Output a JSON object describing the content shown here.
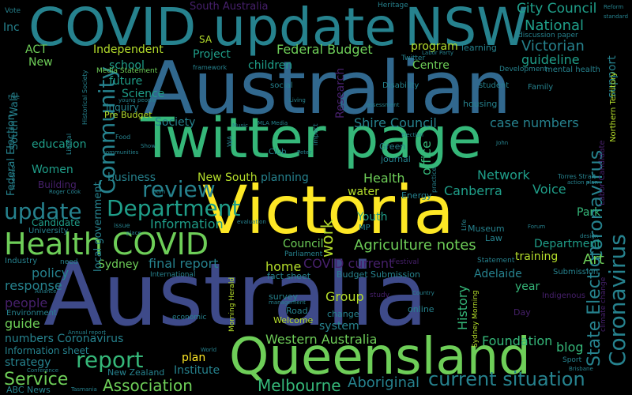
{
  "palette": {
    "purple": "#46206b",
    "indigo": "#3e4a89",
    "blue": "#31688e",
    "teal": "#26828e",
    "green": "#1f9e89",
    "mint": "#35b779",
    "lime": "#6ece58",
    "yellowgreen": "#b5de2b",
    "yellow": "#fde725"
  },
  "words": [
    {
      "text": "Australia",
      "c": "indigo"
    },
    {
      "text": "Australian",
      "c": "blue"
    },
    {
      "text": "Twitter page",
      "c": "mint"
    },
    {
      "text": "Victoria",
      "c": "yellow"
    },
    {
      "text": "COVID update",
      "c": "teal"
    },
    {
      "text": "NSW",
      "c": "teal"
    },
    {
      "text": "Queensland",
      "c": "lime"
    },
    {
      "text": "Health COVID",
      "c": "lime"
    },
    {
      "text": "Department",
      "c": "green"
    },
    {
      "text": "update",
      "c": "teal"
    },
    {
      "text": "Community",
      "c": "teal"
    },
    {
      "text": "review",
      "c": "teal"
    },
    {
      "text": "Coronavirus",
      "c": "teal"
    },
    {
      "text": "report",
      "c": "mint"
    },
    {
      "text": "Service",
      "c": "lime"
    },
    {
      "text": "Association",
      "c": "lime"
    },
    {
      "text": "Melbourne",
      "c": "mint"
    },
    {
      "text": "Aboriginal",
      "c": "teal"
    },
    {
      "text": "current situation",
      "c": "teal"
    },
    {
      "text": "Western Australia",
      "c": "lime"
    },
    {
      "text": "State Election",
      "c": "teal"
    },
    {
      "text": "coronavirus",
      "c": "teal"
    },
    {
      "text": "City Council",
      "c": "green"
    },
    {
      "text": "National",
      "c": "green"
    },
    {
      "text": "Victorian",
      "c": "teal"
    },
    {
      "text": "guideline",
      "c": "green"
    },
    {
      "text": "Federal Budget",
      "c": "lime"
    },
    {
      "text": "Independent",
      "c": "yellowgreen"
    },
    {
      "text": "Project",
      "c": "green"
    },
    {
      "text": "children",
      "c": "green"
    },
    {
      "text": "program",
      "c": "yellowgreen"
    },
    {
      "text": "Centre",
      "c": "lime"
    },
    {
      "text": "learning",
      "c": "teal"
    },
    {
      "text": "case numbers",
      "c": "teal"
    },
    {
      "text": "Shire Council",
      "c": "teal"
    },
    {
      "text": "Health",
      "c": "lime"
    },
    {
      "text": "Network",
      "c": "green"
    },
    {
      "text": "Canberra",
      "c": "green"
    },
    {
      "text": "Voice",
      "c": "green"
    },
    {
      "text": "Agriculture notes",
      "c": "lime"
    },
    {
      "text": "Council",
      "c": "lime"
    },
    {
      "text": "work",
      "c": "yellowgreen"
    },
    {
      "text": "COVID current",
      "c": "purple"
    },
    {
      "text": "Information",
      "c": "green"
    },
    {
      "text": "New South",
      "c": "yellowgreen"
    },
    {
      "text": "planning",
      "c": "teal"
    },
    {
      "text": "business",
      "c": "teal"
    },
    {
      "text": "Society",
      "c": "teal"
    },
    {
      "text": "Science",
      "c": "green"
    },
    {
      "text": "future",
      "c": "green"
    },
    {
      "text": "school",
      "c": "green"
    },
    {
      "text": "Inquiry",
      "c": "teal"
    },
    {
      "text": "Pre Budget",
      "c": "yellowgreen"
    },
    {
      "text": "Media Statement",
      "c": "lime"
    },
    {
      "text": "ACT",
      "c": "lime"
    },
    {
      "text": "New",
      "c": "lime"
    },
    {
      "text": "Inc",
      "c": "teal"
    },
    {
      "text": "SA",
      "c": "yellowgreen"
    },
    {
      "text": "South Australia",
      "c": "purple"
    },
    {
      "text": "Heritage",
      "c": "teal"
    },
    {
      "text": "Vote",
      "c": "teal"
    },
    {
      "text": "Research",
      "c": "purple"
    },
    {
      "text": "office",
      "c": "mint"
    },
    {
      "text": "Green",
      "c": "teal"
    },
    {
      "text": "journal",
      "c": "teal"
    },
    {
      "text": "Energy",
      "c": "teal"
    },
    {
      "text": "water",
      "c": "yellowgreen"
    },
    {
      "text": "Youth",
      "c": "green"
    },
    {
      "text": "MP",
      "c": "teal"
    },
    {
      "text": "Museum",
      "c": "teal"
    },
    {
      "text": "Law",
      "c": "teal"
    },
    {
      "text": "Park",
      "c": "mint"
    },
    {
      "text": "Department",
      "c": "green"
    },
    {
      "text": "training",
      "c": "yellowgreen"
    },
    {
      "text": "Art",
      "c": "lime"
    },
    {
      "text": "final report",
      "c": "teal"
    },
    {
      "text": "home",
      "c": "yellowgreen"
    },
    {
      "text": "fact sheet",
      "c": "teal"
    },
    {
      "text": "Group",
      "c": "yellowgreen"
    },
    {
      "text": "Budget Submission",
      "c": "teal"
    },
    {
      "text": "Adelaide",
      "c": "teal"
    },
    {
      "text": "year",
      "c": "mint"
    },
    {
      "text": "History",
      "c": "mint"
    },
    {
      "text": "Foundation",
      "c": "mint"
    },
    {
      "text": "blog",
      "c": "mint"
    },
    {
      "text": "Welcome",
      "c": "yellowgreen"
    },
    {
      "text": "Road",
      "c": "teal"
    },
    {
      "text": "change",
      "c": "teal"
    },
    {
      "text": "system",
      "c": "teal"
    },
    {
      "text": "survey",
      "c": "teal"
    },
    {
      "text": "online",
      "c": "teal"
    },
    {
      "text": "Day",
      "c": "purple"
    },
    {
      "text": "policy",
      "c": "teal"
    },
    {
      "text": "response",
      "c": "teal"
    },
    {
      "text": "people",
      "c": "purple"
    },
    {
      "text": "guide",
      "c": "lime"
    },
    {
      "text": "numbers Coronavirus",
      "c": "teal"
    },
    {
      "text": "Information sheet",
      "c": "teal"
    },
    {
      "text": "strategy",
      "c": "teal"
    },
    {
      "text": "plan",
      "c": "yellow"
    },
    {
      "text": "Institute",
      "c": "teal"
    },
    {
      "text": "New Zealand",
      "c": "teal"
    },
    {
      "text": "ABC News",
      "c": "teal"
    },
    {
      "text": "Sydney",
      "c": "lime"
    },
    {
      "text": "Candidate",
      "c": "green"
    },
    {
      "text": "University",
      "c": "teal"
    },
    {
      "text": "Industry",
      "c": "teal"
    },
    {
      "text": "Environment",
      "c": "teal"
    },
    {
      "text": "education",
      "c": "green"
    },
    {
      "text": "Women",
      "c": "green"
    },
    {
      "text": "Building",
      "c": "purple"
    },
    {
      "text": "Federal Election",
      "c": "teal"
    },
    {
      "text": "South Wale",
      "c": "teal"
    },
    {
      "text": "local government",
      "c": "teal"
    },
    {
      "text": "support",
      "c": "teal"
    },
    {
      "text": "mental health",
      "c": "teal"
    },
    {
      "text": "Development",
      "c": "teal"
    },
    {
      "text": "Family",
      "c": "teal"
    },
    {
      "text": "student",
      "c": "teal"
    },
    {
      "text": "housing",
      "c": "teal"
    },
    {
      "text": "Disability",
      "c": "teal"
    },
    {
      "text": "social",
      "c": "teal"
    },
    {
      "text": "Twitter",
      "c": "teal"
    },
    {
      "text": "discussion paper",
      "c": "teal"
    },
    {
      "text": "Northern Territory",
      "c": "yellowgreen"
    },
    {
      "text": "Labor Candidate",
      "c": "purple"
    },
    {
      "text": "Torres Strait",
      "c": "teal"
    },
    {
      "text": "Submission",
      "c": "teal"
    },
    {
      "text": "Indigenous",
      "c": "purple"
    },
    {
      "text": "Sport",
      "c": "teal"
    },
    {
      "text": "Statement",
      "c": "teal"
    },
    {
      "text": "Festival",
      "c": "purple"
    },
    {
      "text": "Sydney Morning",
      "c": "yellowgreen"
    },
    {
      "text": "Morning Herald",
      "c": "yellowgreen"
    },
    {
      "text": "economic",
      "c": "teal"
    },
    {
      "text": "International",
      "c": "teal"
    },
    {
      "text": "Parliament",
      "c": "teal"
    },
    {
      "text": "study",
      "c": "purple"
    },
    {
      "text": "Historical Society",
      "c": "teal"
    },
    {
      "text": "Food",
      "c": "teal"
    },
    {
      "text": "Liberal",
      "c": "teal"
    },
    {
      "text": "Club",
      "c": "teal"
    },
    {
      "text": "impact",
      "c": "teal"
    },
    {
      "text": "practice",
      "c": "teal"
    },
    {
      "text": "issue",
      "c": "teal"
    },
    {
      "text": "framework",
      "c": "teal"
    },
    {
      "text": "need",
      "c": "teal"
    },
    {
      "text": "climate change",
      "c": "purple"
    },
    {
      "text": "Life",
      "c": "teal"
    },
    {
      "text": "Country",
      "c": "teal"
    },
    {
      "text": "Alliance",
      "c": "teal"
    },
    {
      "text": "Annual report",
      "c": "teal"
    },
    {
      "text": "World",
      "c": "teal"
    },
    {
      "text": "Conference",
      "c": "teal"
    },
    {
      "text": "WA",
      "c": "teal"
    },
    {
      "text": "Tasmania",
      "c": "teal"
    },
    {
      "text": "Brisbane",
      "c": "teal"
    },
    {
      "text": "Labor Party",
      "c": "teal"
    },
    {
      "text": "standard",
      "c": "teal"
    },
    {
      "text": "Reform",
      "c": "teal"
    },
    {
      "text": "assessment",
      "c": "teal"
    },
    {
      "text": "Election",
      "c": "teal"
    },
    {
      "text": "Living",
      "c": "teal"
    },
    {
      "text": "Peter",
      "c": "teal"
    },
    {
      "text": "MLA Media",
      "c": "teal"
    },
    {
      "text": "Music",
      "c": "teal"
    },
    {
      "text": "Show",
      "c": "teal"
    },
    {
      "text": "John",
      "c": "teal"
    },
    {
      "text": "Forum",
      "c": "teal"
    },
    {
      "text": "design",
      "c": "teal"
    },
    {
      "text": "action plan",
      "c": "teal"
    },
    {
      "text": "Roger Cook",
      "c": "teal"
    },
    {
      "text": "Kim",
      "c": "teal"
    },
    {
      "text": "young people",
      "c": "teal"
    },
    {
      "text": "resource",
      "c": "teal"
    },
    {
      "text": "communities",
      "c": "teal"
    },
    {
      "text": "management",
      "c": "teal"
    },
    {
      "text": "evaluation",
      "c": "teal"
    },
    {
      "text": "Free",
      "c": "teal"
    },
    {
      "text": "place",
      "c": "teal"
    }
  ]
}
